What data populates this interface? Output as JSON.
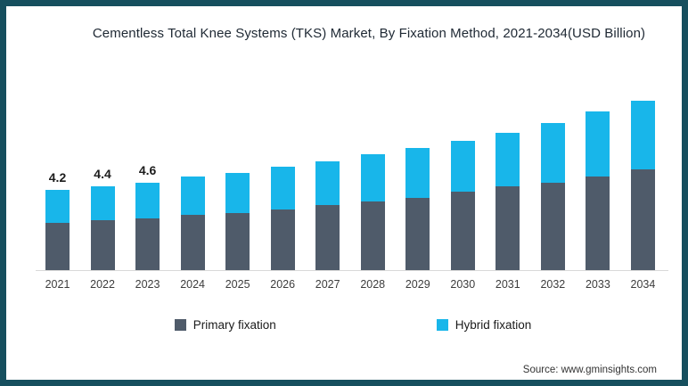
{
  "frame": {
    "border_color": "#164F5E",
    "background": "#FFFFFF"
  },
  "title": "Cementless Total Knee Systems (TKS) Market, By Fixation Method, 2021-2034(USD Billion)",
  "source": "Source: www.gminsights.com",
  "legend": [
    {
      "label": "Primary fixation",
      "color": "#4F5B6A"
    },
    {
      "label": "Hybrid fixation",
      "color": "#18B6EA"
    }
  ],
  "chart_data": {
    "type": "bar",
    "stacked": true,
    "title": "Cementless Total Knee Systems (TKS) Market, By Fixation Method, 2021-2034(USD Billion)",
    "unit": "USD Billion",
    "xlabel": "",
    "ylabel": "",
    "ylim": [
      0,
      9.4
    ],
    "grid": false,
    "legend_position": "bottom",
    "y_axis_visible": false,
    "categories": [
      "2021",
      "2022",
      "2023",
      "2024",
      "2025",
      "2026",
      "2027",
      "2028",
      "2029",
      "2030",
      "2031",
      "2032",
      "2033",
      "2034"
    ],
    "series": [
      {
        "name": "Primary fixation",
        "color": "#4F5B6A",
        "values": [
          2.5,
          2.6,
          2.7,
          2.9,
          3.0,
          3.2,
          3.4,
          3.6,
          3.8,
          4.1,
          4.4,
          4.6,
          4.9,
          5.3
        ]
      },
      {
        "name": "Hybrid fixation",
        "color": "#18B6EA",
        "values": [
          1.7,
          1.8,
          1.9,
          2.0,
          2.1,
          2.2,
          2.3,
          2.5,
          2.6,
          2.7,
          2.8,
          3.1,
          3.4,
          3.6
        ]
      }
    ],
    "totals": [
      4.2,
      4.4,
      4.6,
      4.9,
      5.1,
      5.4,
      5.7,
      6.1,
      6.4,
      6.8,
      7.2,
      7.7,
      8.3,
      8.9
    ],
    "data_labels": [
      "4.2",
      "4.4",
      "4.6",
      "",
      "",
      "",
      "",
      "",
      "",
      "",
      "",
      "",
      "",
      ""
    ]
  }
}
